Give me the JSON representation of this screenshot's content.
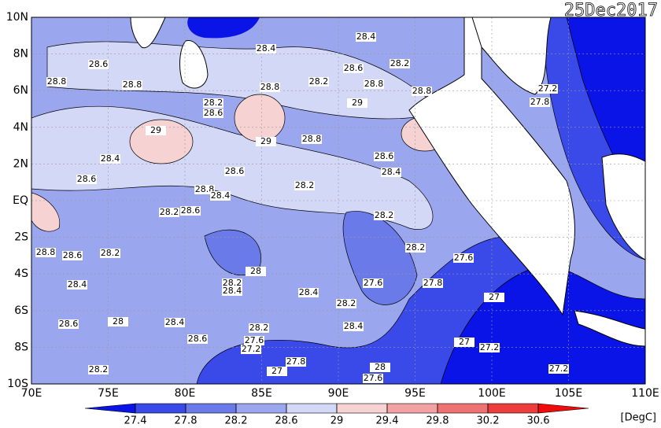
{
  "map": {
    "date": "25Dec2017",
    "unit": "[DegC]",
    "lon_ticks": [
      {
        "value": 70,
        "label": "70E"
      },
      {
        "value": 75,
        "label": "75E"
      },
      {
        "value": 80,
        "label": "80E"
      },
      {
        "value": 85,
        "label": "85E"
      },
      {
        "value": 90,
        "label": "90E"
      },
      {
        "value": 95,
        "label": "95E"
      },
      {
        "value": 100,
        "label": "100E"
      },
      {
        "value": 105,
        "label": "105E"
      },
      {
        "value": 110,
        "label": "110E"
      }
    ],
    "lat_ticks": [
      {
        "value": 10,
        "label": "10N"
      },
      {
        "value": 8,
        "label": "8N"
      },
      {
        "value": 6,
        "label": "6N"
      },
      {
        "value": 4,
        "label": "4N"
      },
      {
        "value": 2,
        "label": "2N"
      },
      {
        "value": 0,
        "label": "EQ"
      },
      {
        "value": -2,
        "label": "2S"
      },
      {
        "value": -4,
        "label": "4S"
      },
      {
        "value": -6,
        "label": "6S"
      },
      {
        "value": -8,
        "label": "8S"
      },
      {
        "value": -10,
        "label": "10S"
      }
    ],
    "colorbar_ticks": [
      27.4,
      27.8,
      28.2,
      28.6,
      29,
      29.4,
      29.8,
      30.2,
      30.6
    ],
    "colorbar_colors": [
      "#0a14e6",
      "#3a4ae8",
      "#6a7ae8",
      "#9aa6ee",
      "#d2d8f6",
      "#f6d2d2",
      "#f2a2a2",
      "#ee7272",
      "#ec3c3c",
      "#f00c0c"
    ],
    "contour_labels": [
      28.4,
      28.4,
      28.6,
      28.6,
      28.2,
      28.8,
      28.8,
      28.2,
      28.8,
      28.8,
      28.8,
      27.2,
      27.8,
      28.2,
      28.6,
      29,
      29,
      29,
      28.8,
      28.6,
      28.4,
      28.6,
      28.4,
      28.6,
      28.8,
      28.4,
      28.2,
      28.2,
      28.6,
      28.2,
      28.8,
      28.6,
      28.2,
      28.2,
      27.6,
      28,
      28.2,
      28.4,
      27.6,
      27.8,
      28.4,
      28.4,
      27,
      28.2,
      28.4,
      28,
      28.6,
      28.4,
      28.2,
      28.6,
      27.6,
      27.2,
      27,
      27.2,
      28.2,
      27.8,
      27,
      28,
      27.6,
      27.2
    ]
  }
}
